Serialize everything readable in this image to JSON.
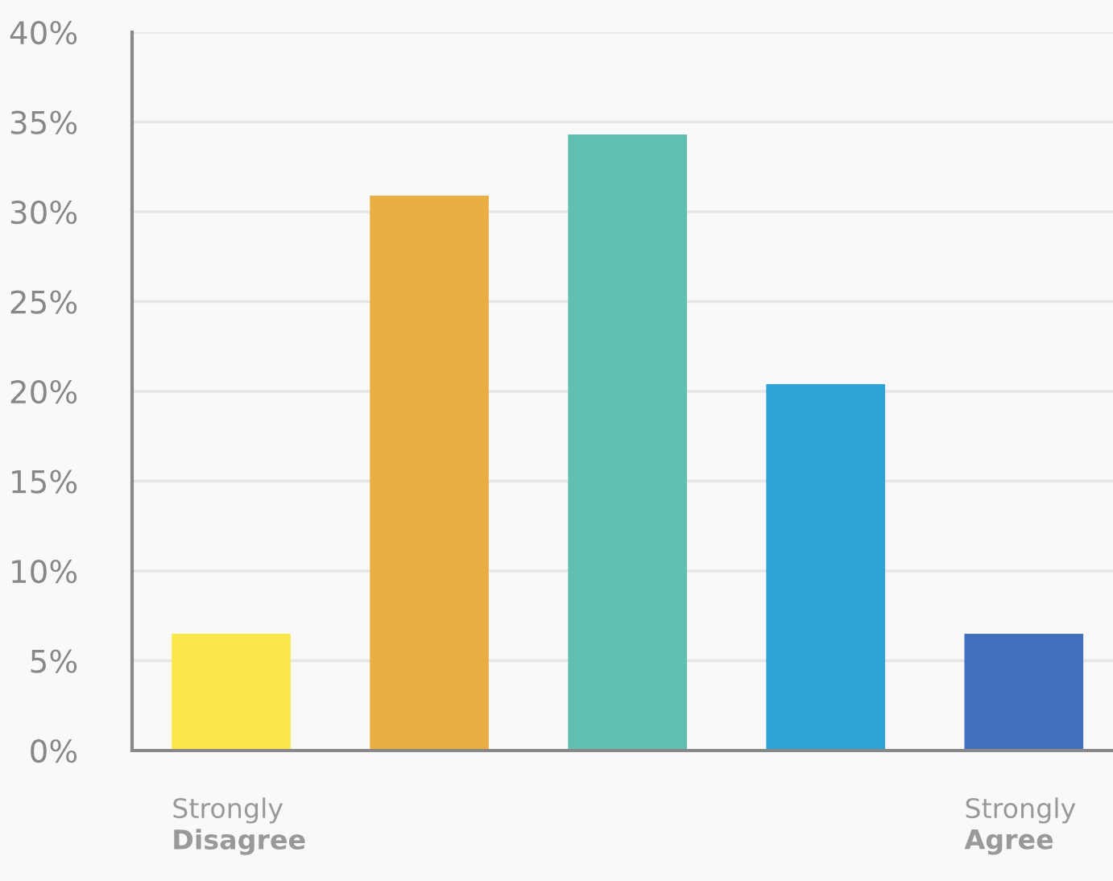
{
  "chart_data": {
    "type": "bar",
    "categories": [
      "Strongly\nDisagree",
      null,
      null,
      null,
      "Strongly\nAgree"
    ],
    "values": [
      6.5,
      30.9,
      34.3,
      20.4,
      6.5
    ],
    "colors": [
      "#fbe74b",
      "#ebae45",
      "#5fc0b1",
      "#2fa2d8",
      "#4270c0"
    ],
    "ylim": [
      0,
      40
    ],
    "yticks": [
      {
        "value": 0,
        "label": "0%"
      },
      {
        "value": 5,
        "label": "5%"
      },
      {
        "value": 10,
        "label": "10%"
      },
      {
        "value": 15,
        "label": "15%"
      },
      {
        "value": 20,
        "label": "20%"
      },
      {
        "value": 25,
        "label": "25%"
      },
      {
        "value": 30,
        "label": "30%"
      },
      {
        "value": 35,
        "label": "35%"
      },
      {
        "value": 40,
        "label": "40%"
      }
    ],
    "grid": "y"
  }
}
